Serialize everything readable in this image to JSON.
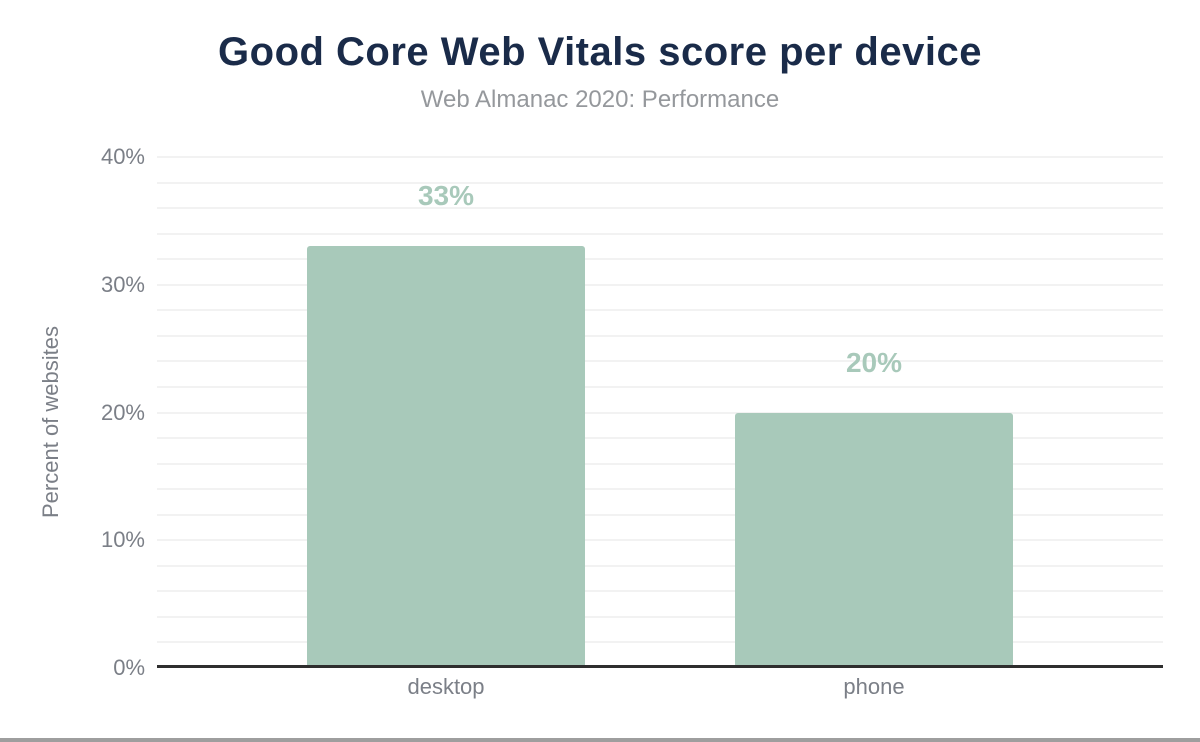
{
  "page": {
    "background": "#ffffff"
  },
  "chart_data": {
    "type": "bar",
    "title": "Good Core Web Vitals score per device",
    "subtitle": "Web Almanac 2020: Performance",
    "categories": [
      "desktop",
      "phone"
    ],
    "values": [
      33,
      20
    ],
    "data_labels": [
      "33%",
      "20%"
    ],
    "xlabel": "",
    "ylabel": "Percent of websites",
    "ylim": [
      0,
      40
    ],
    "y_major_ticks": [
      0,
      10,
      20,
      30,
      40
    ],
    "y_tick_labels": [
      "0%",
      "10%",
      "20%",
      "30%",
      "40%"
    ],
    "y_minor_step": 2,
    "grid": true,
    "legend": "none",
    "colors": {
      "bar": "#a8c9ba",
      "data_label": "#a8c9ba",
      "title": "#1a2b49",
      "subtitle": "#95989c",
      "axis_text": "#7b7f87",
      "axis_line": "#2e2e2e",
      "gridline": "#f2f2f2",
      "footer_bar": "#9e9e9e"
    }
  }
}
